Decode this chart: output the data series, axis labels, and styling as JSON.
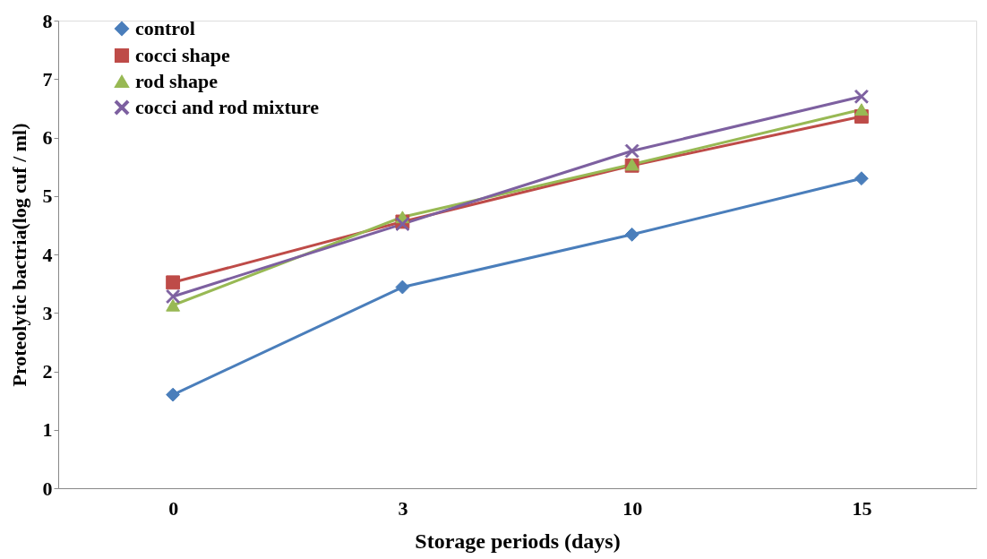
{
  "chart_data": {
    "type": "line",
    "xlabel": "Storage periods (days)",
    "ylabel": "Proteolytic bactria(log cuf / ml)",
    "categories": [
      "0",
      "3",
      "10",
      "15"
    ],
    "ylim": [
      0,
      8
    ],
    "yticks": [
      0,
      1,
      2,
      3,
      4,
      5,
      6,
      7,
      8
    ],
    "grid": false,
    "legend": "top left",
    "line_style": "solid",
    "series": [
      {
        "name": "control",
        "color": "#4a7ebb",
        "marker": "diamond",
        "values": [
          1.6,
          3.44,
          4.34,
          5.3
        ]
      },
      {
        "name": "cocci shape",
        "color": "#be4b48",
        "marker": "square",
        "values": [
          3.52,
          4.56,
          5.52,
          6.36
        ]
      },
      {
        "name": "rod shape",
        "color": "#98b954",
        "marker": "triangle",
        "values": [
          3.13,
          4.64,
          5.54,
          6.48
        ]
      },
      {
        "name": "cocci and rod mixture",
        "color": "#7d60a0",
        "marker": "cross",
        "values": [
          3.28,
          4.52,
          5.77,
          6.7
        ]
      }
    ]
  }
}
